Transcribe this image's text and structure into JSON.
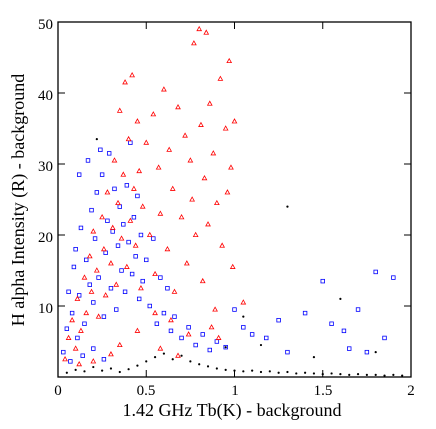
{
  "chart_data": {
    "type": "scatter",
    "title": "",
    "xlabel": "1.42 GHz Tb(K) - background",
    "ylabel": "H alpha Intensity (R) - background",
    "xlim": [
      0,
      2
    ],
    "ylim": [
      0,
      50
    ],
    "xticks": [
      0,
      0.5,
      1,
      1.5,
      2
    ],
    "yticks": [
      10,
      20,
      30,
      40,
      50
    ],
    "xtick_labels": [
      "0",
      "0.5",
      "1",
      "1.5",
      "2"
    ],
    "ytick_labels": [
      "10",
      "20",
      "30",
      "40",
      "50"
    ],
    "grid": false,
    "legend": "none",
    "series": [
      {
        "marker": "dot",
        "color": "#000000",
        "points": [
          [
            0.05,
            0.6
          ],
          [
            0.1,
            1.0
          ],
          [
            0.15,
            0.8
          ],
          [
            0.2,
            1.4
          ],
          [
            0.25,
            0.9
          ],
          [
            0.3,
            1.2
          ],
          [
            0.35,
            0.7
          ],
          [
            0.4,
            1.1
          ],
          [
            0.45,
            1.6
          ],
          [
            0.5,
            2.2
          ],
          [
            0.55,
            2.8
          ],
          [
            0.6,
            3.3
          ],
          [
            0.65,
            2.5
          ],
          [
            0.7,
            3.0
          ],
          [
            0.75,
            2.2
          ],
          [
            0.8,
            1.8
          ],
          [
            0.85,
            1.5
          ],
          [
            0.9,
            1.2
          ],
          [
            0.95,
            1.0
          ],
          [
            1.0,
            0.9
          ],
          [
            1.05,
            0.8
          ],
          [
            1.1,
            0.9
          ],
          [
            1.15,
            0.7
          ],
          [
            1.2,
            0.8
          ],
          [
            1.25,
            0.6
          ],
          [
            1.3,
            0.7
          ],
          [
            1.35,
            0.5
          ],
          [
            1.4,
            0.6
          ],
          [
            1.45,
            0.5
          ],
          [
            1.5,
            0.4
          ],
          [
            1.55,
            0.5
          ],
          [
            1.6,
            0.4
          ],
          [
            1.65,
            0.3
          ],
          [
            1.7,
            0.4
          ],
          [
            1.75,
            0.3
          ],
          [
            1.8,
            0.3
          ],
          [
            1.85,
            0.2
          ],
          [
            1.9,
            0.3
          ],
          [
            1.95,
            0.2
          ],
          [
            0.22,
            33.5
          ],
          [
            1.3,
            24.0
          ],
          [
            1.6,
            11.0
          ],
          [
            1.05,
            8.5
          ],
          [
            1.15,
            4.5
          ],
          [
            0.95,
            4.2
          ],
          [
            1.45,
            2.8
          ],
          [
            1.8,
            3.5
          ]
        ]
      },
      {
        "marker": "square",
        "color": "#0000ff",
        "points": [
          [
            0.03,
            3.5
          ],
          [
            0.05,
            6.8
          ],
          [
            0.06,
            12.0
          ],
          [
            0.08,
            9.0
          ],
          [
            0.09,
            15.5
          ],
          [
            0.1,
            18.0
          ],
          [
            0.12,
            11.5
          ],
          [
            0.13,
            21.0
          ],
          [
            0.15,
            7.5
          ],
          [
            0.16,
            16.5
          ],
          [
            0.18,
            13.0
          ],
          [
            0.19,
            23.5
          ],
          [
            0.2,
            10.5
          ],
          [
            0.21,
            19.5
          ],
          [
            0.22,
            26.0
          ],
          [
            0.23,
            14.0
          ],
          [
            0.25,
            28.5
          ],
          [
            0.26,
            8.5
          ],
          [
            0.27,
            17.5
          ],
          [
            0.28,
            22.0
          ],
          [
            0.29,
            31.5
          ],
          [
            0.3,
            12.5
          ],
          [
            0.31,
            20.5
          ],
          [
            0.32,
            26.5
          ],
          [
            0.33,
            9.5
          ],
          [
            0.34,
            18.5
          ],
          [
            0.35,
            24.0
          ],
          [
            0.36,
            15.0
          ],
          [
            0.37,
            21.5
          ],
          [
            0.38,
            12.0
          ],
          [
            0.39,
            27.0
          ],
          [
            0.4,
            19.0
          ],
          [
            0.41,
            33.0
          ],
          [
            0.42,
            14.5
          ],
          [
            0.43,
            22.5
          ],
          [
            0.44,
            17.0
          ],
          [
            0.45,
            25.5
          ],
          [
            0.46,
            11.0
          ],
          [
            0.47,
            20.0
          ],
          [
            0.48,
            13.5
          ],
          [
            0.5,
            16.5
          ],
          [
            0.52,
            10.0
          ],
          [
            0.54,
            19.5
          ],
          [
            0.56,
            7.5
          ],
          [
            0.58,
            14.0
          ],
          [
            0.6,
            9.0
          ],
          [
            0.62,
            12.5
          ],
          [
            0.64,
            6.5
          ],
          [
            0.66,
            8.5
          ],
          [
            0.7,
            5.5
          ],
          [
            0.74,
            7.0
          ],
          [
            0.78,
            4.5
          ],
          [
            0.82,
            6.0
          ],
          [
            0.86,
            3.8
          ],
          [
            0.9,
            5.0
          ],
          [
            0.95,
            4.2
          ],
          [
            1.0,
            9.5
          ],
          [
            1.05,
            7.0
          ],
          [
            1.1,
            6.0
          ],
          [
            1.18,
            5.5
          ],
          [
            1.25,
            8.0
          ],
          [
            1.3,
            3.5
          ],
          [
            1.5,
            13.5
          ],
          [
            1.55,
            7.5
          ],
          [
            1.65,
            4.0
          ],
          [
            1.7,
            9.5
          ],
          [
            1.75,
            3.5
          ],
          [
            1.8,
            14.8
          ],
          [
            1.85,
            5.5
          ],
          [
            1.9,
            14.0
          ],
          [
            1.62,
            6.5
          ],
          [
            1.4,
            9.0
          ],
          [
            0.12,
            28.5
          ],
          [
            0.17,
            30.5
          ],
          [
            0.24,
            32.0
          ],
          [
            0.14,
            3.0
          ],
          [
            0.07,
            2.2
          ],
          [
            0.11,
            5.5
          ],
          [
            0.2,
            4.0
          ],
          [
            0.26,
            2.5
          ]
        ]
      },
      {
        "marker": "triangle",
        "color": "#ff0000",
        "points": [
          [
            0.04,
            2.5
          ],
          [
            0.06,
            5.5
          ],
          [
            0.08,
            8.0
          ],
          [
            0.1,
            4.0
          ],
          [
            0.11,
            11.0
          ],
          [
            0.13,
            6.5
          ],
          [
            0.15,
            14.0
          ],
          [
            0.16,
            9.0
          ],
          [
            0.18,
            17.0
          ],
          [
            0.19,
            12.0
          ],
          [
            0.2,
            20.5
          ],
          [
            0.22,
            15.0
          ],
          [
            0.23,
            8.5
          ],
          [
            0.25,
            22.5
          ],
          [
            0.26,
            18.0
          ],
          [
            0.27,
            11.5
          ],
          [
            0.28,
            26.0
          ],
          [
            0.3,
            16.0
          ],
          [
            0.31,
            21.0
          ],
          [
            0.32,
            30.5
          ],
          [
            0.33,
            13.0
          ],
          [
            0.34,
            24.5
          ],
          [
            0.35,
            37.5
          ],
          [
            0.36,
            19.5
          ],
          [
            0.37,
            28.5
          ],
          [
            0.38,
            41.5
          ],
          [
            0.39,
            15.5
          ],
          [
            0.4,
            33.5
          ],
          [
            0.41,
            22.0
          ],
          [
            0.42,
            42.5
          ],
          [
            0.43,
            26.5
          ],
          [
            0.44,
            18.5
          ],
          [
            0.45,
            36.0
          ],
          [
            0.46,
            29.0
          ],
          [
            0.47,
            12.5
          ],
          [
            0.48,
            24.0
          ],
          [
            0.5,
            33.0
          ],
          [
            0.52,
            20.0
          ],
          [
            0.54,
            37.0
          ],
          [
            0.55,
            14.5
          ],
          [
            0.57,
            29.5
          ],
          [
            0.58,
            23.0
          ],
          [
            0.6,
            40.5
          ],
          [
            0.62,
            18.0
          ],
          [
            0.63,
            32.0
          ],
          [
            0.65,
            26.5
          ],
          [
            0.66,
            12.0
          ],
          [
            0.68,
            38.0
          ],
          [
            0.7,
            22.5
          ],
          [
            0.72,
            34.0
          ],
          [
            0.73,
            16.0
          ],
          [
            0.75,
            30.5
          ],
          [
            0.76,
            25.0
          ],
          [
            0.77,
            47.0
          ],
          [
            0.78,
            20.0
          ],
          [
            0.8,
            49.0
          ],
          [
            0.81,
            35.5
          ],
          [
            0.82,
            13.5
          ],
          [
            0.83,
            28.0
          ],
          [
            0.84,
            48.5
          ],
          [
            0.85,
            21.5
          ],
          [
            0.86,
            38.5
          ],
          [
            0.88,
            31.5
          ],
          [
            0.89,
            9.5
          ],
          [
            0.9,
            24.5
          ],
          [
            0.92,
            42.0
          ],
          [
            0.93,
            18.5
          ],
          [
            0.95,
            35.0
          ],
          [
            0.96,
            26.0
          ],
          [
            0.97,
            44.5
          ],
          [
            0.98,
            29.5
          ],
          [
            0.99,
            15.5
          ],
          [
            1.0,
            36.0
          ],
          [
            0.64,
            8.0
          ],
          [
            0.74,
            6.0
          ],
          [
            0.87,
            7.0
          ],
          [
            0.91,
            5.5
          ],
          [
            0.55,
            9.0
          ],
          [
            0.45,
            6.5
          ],
          [
            0.35,
            4.5
          ],
          [
            1.05,
            10.5
          ],
          [
            0.12,
            1.8
          ],
          [
            0.2,
            2.2
          ],
          [
            0.3,
            3.2
          ],
          [
            0.58,
            4.0
          ],
          [
            0.68,
            3.0
          ]
        ]
      }
    ]
  }
}
